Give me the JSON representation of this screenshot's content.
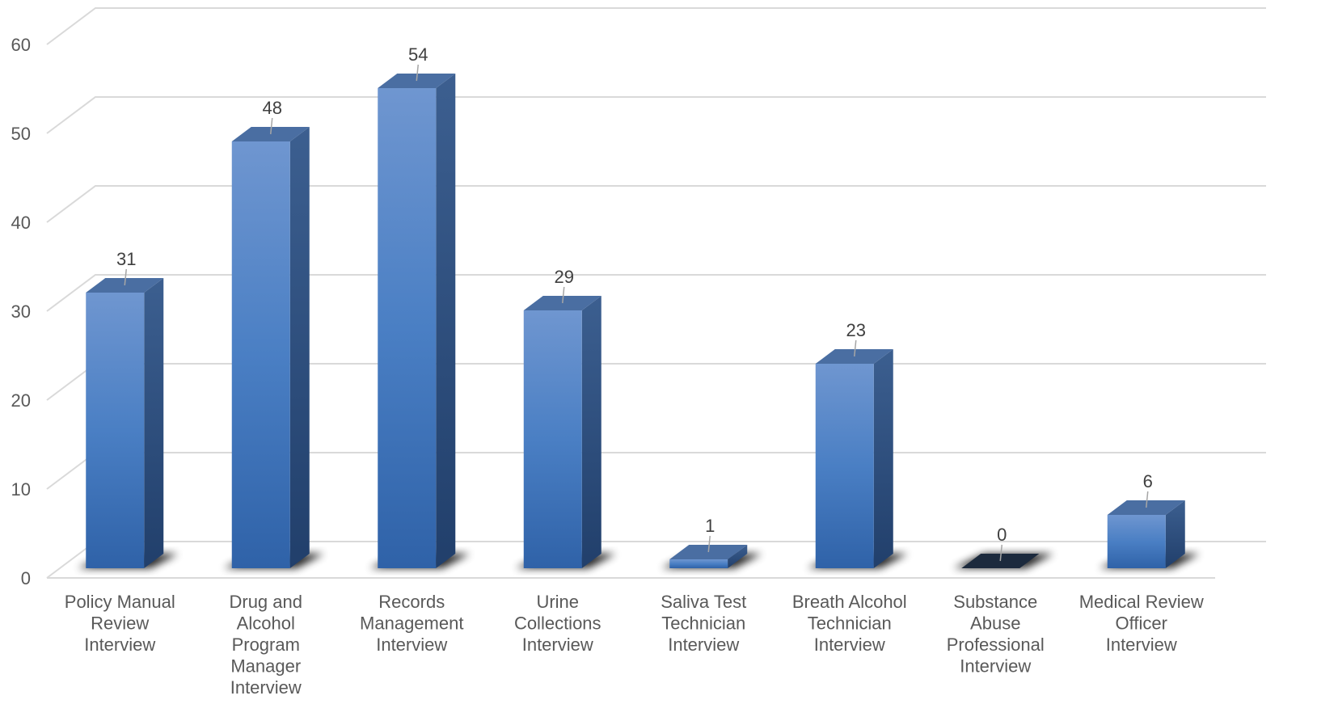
{
  "chart_data": {
    "type": "bar",
    "style": "3d-column",
    "categories": [
      [
        "Policy Manual",
        "Review",
        "Interview"
      ],
      [
        "Drug and",
        "Alcohol",
        "Program",
        "Manager",
        "Interview"
      ],
      [
        "Records",
        "Management",
        "Interview"
      ],
      [
        "Urine",
        "Collections",
        "Interview"
      ],
      [
        "Saliva Test",
        "Technician",
        "Interview"
      ],
      [
        "Breath Alcohol",
        "Technician",
        "Interview"
      ],
      [
        "Substance",
        "Abuse",
        "Professional",
        "Interview"
      ],
      [
        "Medical Review",
        "Officer",
        "Interview"
      ]
    ],
    "values": [
      31,
      48,
      54,
      29,
      1,
      23,
      0,
      6
    ],
    "data_labels": [
      "31",
      "48",
      "54",
      "29",
      "1",
      "23",
      "0",
      "6"
    ],
    "yticks": [
      "0",
      "10",
      "20",
      "30",
      "40",
      "50",
      "60"
    ],
    "ylim": [
      0,
      60
    ],
    "title": "",
    "xlabel": "",
    "ylabel": "",
    "grid": true,
    "legend": "none",
    "colors": {
      "bar_light": "#6f96d0",
      "bar_mid": "#4a7fc4",
      "bar_dark": "#2f62a8",
      "bar_side": "#2a4f80",
      "bar_top": "#4a6ea2",
      "zero_bar": "#1c2a3d",
      "grid": "#d9d9d9",
      "tick_text": "#595959",
      "label_text": "#404040"
    }
  }
}
